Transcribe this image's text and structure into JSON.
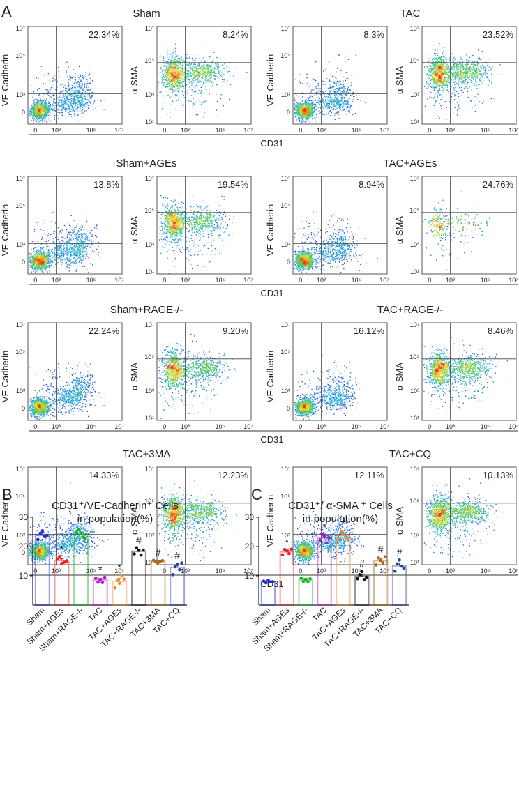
{
  "panel_labels": {
    "a": "A",
    "b": "B",
    "c": "C"
  },
  "flow_axis": {
    "x_label": "CD31",
    "x_ticks": [
      "0",
      "10³",
      "10⁵",
      "10⁷"
    ],
    "y_ticks_ve": [
      "0",
      "10³",
      "10⁵",
      "10⁷"
    ],
    "y_ticks_sma": [
      "10¹",
      "10³",
      "10⁵",
      "10⁷"
    ],
    "ve_label": "VE-Cadherin",
    "sma_label": "α-SMA"
  },
  "flow_rows": [
    {
      "groups": [
        {
          "name": "Sham",
          "ve_pct": "22.34%",
          "sma_pct": "8.24%"
        },
        {
          "name": "TAC",
          "ve_pct": "8.3%",
          "sma_pct": "23.52%"
        }
      ]
    },
    {
      "groups": [
        {
          "name": "Sham+AGEs",
          "ve_pct": "13.8%",
          "sma_pct": "19.54%"
        },
        {
          "name": "TAC+AGEs",
          "ve_pct": "8.94%",
          "sma_pct": "24.76%"
        }
      ]
    },
    {
      "groups": [
        {
          "name": "Sham+RAGE-/-",
          "ve_pct": "22.24%",
          "sma_pct": "9.20%"
        },
        {
          "name": "TAC+RAGE-/-",
          "ve_pct": "16.12%",
          "sma_pct": "8.46%"
        }
      ]
    },
    {
      "groups": [
        {
          "name": "TAC+3MA",
          "ve_pct": "14.33%",
          "sma_pct": "12.23%"
        },
        {
          "name": "TAC+CQ",
          "ve_pct": "12.11%",
          "sma_pct": "10.13%"
        }
      ]
    }
  ],
  "chart_data": [
    {
      "type": "bar",
      "title": "CD31⁺/VE-Cadherin⁺ Cells",
      "subtitle": "in population(%)",
      "categories": [
        "Sham",
        "Sham+AGEs",
        "Sham+RAGE-/-",
        "TAC",
        "TAC+AGEs",
        "TAC+RAGE-/-",
        "TAC+3MA",
        "TAC+CQ"
      ],
      "values": [
        23.8,
        15.2,
        24.2,
        8.6,
        8.1,
        18.4,
        14.9,
        12.9
      ],
      "errors": [
        1.0,
        0.6,
        0.8,
        0.5,
        1.1,
        0.7,
        0.3,
        0.8
      ],
      "points": [
        [
          22.4,
          24.5,
          25.4,
          23.4,
          23.8
        ],
        [
          15.8,
          16.6,
          14.2,
          14.6,
          14.8
        ],
        [
          24.8,
          25.8,
          24.6,
          23.2,
          22.8
        ],
        [
          9.2,
          7.8,
          8.6,
          7.7,
          9.5
        ],
        [
          5.9,
          8.5,
          7.4,
          10.2,
          8.9
        ],
        [
          17.5,
          19.6,
          18.7,
          17.1,
          18.8
        ],
        [
          15.3,
          14.7,
          14.5,
          14.9,
          15.2
        ],
        [
          10.4,
          13.1,
          13.9,
          12.1,
          14.4
        ]
      ],
      "sig": [
        "",
        "*",
        "",
        "*",
        "*",
        "#",
        "#",
        "#"
      ],
      "colors": [
        "#1f2ed0",
        "#e8212a",
        "#1db321",
        "#b013c2",
        "#e8892e",
        "#111111",
        "#a86a18",
        "#2f3f9a"
      ],
      "ylim": [
        0,
        30
      ],
      "yticks": [
        10,
        20,
        30
      ]
    },
    {
      "type": "bar",
      "title": "CD31⁺/ α-SMA ⁺ Cells",
      "subtitle": "in population(%)",
      "categories": [
        "Sham",
        "Sham+AGEs",
        "Sham+RAGE-/-",
        "TAC",
        "TAC+AGEs",
        "TAC+RAGE-/-",
        "TAC+3MA",
        "TAC+CQ"
      ],
      "values": [
        8.0,
        18.2,
        8.6,
        23.0,
        23.7,
        9.8,
        15.1,
        13.4
      ],
      "errors": [
        0.3,
        0.6,
        0.5,
        0.7,
        0.9,
        0.8,
        0.8,
        1.0
      ],
      "points": [
        [
          8.2,
          7.6,
          8.5,
          7.9,
          8.0
        ],
        [
          17.2,
          19.0,
          18.5,
          17.6,
          19.1
        ],
        [
          9.2,
          8.1,
          8.8,
          8.0,
          9.0
        ],
        [
          22.1,
          24.2,
          23.4,
          21.2,
          23.0
        ],
        [
          22.4,
          25.3,
          24.1,
          23.6,
          22.5
        ],
        [
          9.0,
          10.4,
          11.5,
          8.7,
          9.5
        ],
        [
          13.7,
          16.1,
          15.2,
          14.4,
          16.5
        ],
        [
          11.6,
          14.1,
          15.4,
          13.3,
          12.6
        ]
      ],
      "sig": [
        "",
        "*",
        "",
        "*",
        "*",
        "#",
        "#",
        "#"
      ],
      "colors": [
        "#1f2ed0",
        "#e8212a",
        "#1db321",
        "#b013c2",
        "#e8892e",
        "#111111",
        "#a86a18",
        "#2f3f9a"
      ],
      "ylim": [
        0,
        30
      ],
      "yticks": [
        10,
        20,
        30
      ]
    }
  ]
}
